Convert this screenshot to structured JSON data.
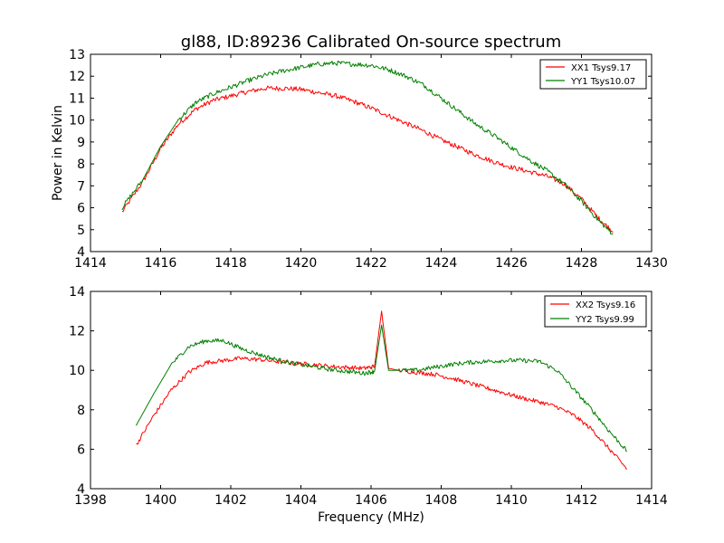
{
  "chart_data": [
    {
      "type": "line",
      "title": "gl88, ID:89236 Calibrated On-source spectrum",
      "xlabel": "",
      "ylabel": "Power in Kelvin",
      "xlim": [
        1414,
        1430
      ],
      "ylim": [
        4,
        13
      ],
      "xticks": [
        1414,
        1416,
        1418,
        1420,
        1422,
        1424,
        1426,
        1428,
        1430
      ],
      "yticks": [
        4,
        5,
        6,
        7,
        8,
        9,
        10,
        11,
        12,
        13
      ],
      "legend_position": "top-right",
      "series": [
        {
          "name": "XX1 Tsys9.17",
          "color": "#ff0000",
          "x": [
            1414.9,
            1415.5,
            1416.0,
            1416.5,
            1417.0,
            1417.5,
            1418.0,
            1418.5,
            1419.0,
            1419.5,
            1420.0,
            1420.5,
            1421.0,
            1421.5,
            1422.0,
            1422.5,
            1423.0,
            1423.5,
            1424.0,
            1424.5,
            1425.0,
            1425.5,
            1426.0,
            1426.5,
            1427.0,
            1427.5,
            1428.0,
            1428.5,
            1428.9
          ],
          "y": [
            5.8,
            7.2,
            8.7,
            9.8,
            10.5,
            10.9,
            11.1,
            11.3,
            11.45,
            11.45,
            11.4,
            11.25,
            11.1,
            10.85,
            10.55,
            10.2,
            9.85,
            9.5,
            9.1,
            8.75,
            8.4,
            8.1,
            7.85,
            7.65,
            7.45,
            7.1,
            6.4,
            5.5,
            4.9
          ]
        },
        {
          "name": "YY1 Tsys10.07",
          "color": "#008000",
          "x": [
            1414.9,
            1415.5,
            1416.0,
            1416.5,
            1417.0,
            1417.5,
            1418.0,
            1418.5,
            1419.0,
            1419.5,
            1420.0,
            1420.5,
            1421.0,
            1421.5,
            1422.0,
            1422.5,
            1423.0,
            1423.5,
            1424.0,
            1424.5,
            1425.0,
            1425.5,
            1426.0,
            1426.5,
            1427.0,
            1427.5,
            1428.0,
            1428.5,
            1428.9
          ],
          "y": [
            6.0,
            7.3,
            8.8,
            10.0,
            10.8,
            11.2,
            11.5,
            11.8,
            12.05,
            12.25,
            12.4,
            12.55,
            12.6,
            12.55,
            12.5,
            12.3,
            12.0,
            11.6,
            11.0,
            10.4,
            9.8,
            9.3,
            8.75,
            8.2,
            7.7,
            7.1,
            6.3,
            5.4,
            4.8
          ]
        }
      ]
    },
    {
      "type": "line",
      "title": "",
      "xlabel": "Frequency (MHz)",
      "ylabel": "",
      "xlim": [
        1398,
        1414
      ],
      "ylim": [
        4,
        14
      ],
      "xticks": [
        1398,
        1400,
        1402,
        1404,
        1406,
        1408,
        1410,
        1412,
        1414
      ],
      "yticks": [
        4,
        6,
        8,
        10,
        12,
        14
      ],
      "legend_position": "top-right",
      "series": [
        {
          "name": "XX2 Tsys9.16",
          "color": "#ff0000",
          "x": [
            1399.3,
            1399.8,
            1400.3,
            1400.8,
            1401.3,
            1401.8,
            1402.3,
            1402.8,
            1403.3,
            1403.8,
            1404.3,
            1404.8,
            1405.3,
            1405.8,
            1406.1,
            1406.3,
            1406.5,
            1406.8,
            1407.3,
            1407.8,
            1408.3,
            1408.8,
            1409.3,
            1409.8,
            1410.3,
            1410.8,
            1411.3,
            1411.8,
            1412.3,
            1412.8,
            1413.3
          ],
          "y": [
            6.2,
            7.7,
            9.0,
            9.9,
            10.4,
            10.5,
            10.6,
            10.55,
            10.45,
            10.35,
            10.3,
            10.2,
            10.15,
            10.1,
            10.2,
            13.0,
            10.1,
            10.0,
            9.9,
            9.8,
            9.6,
            9.35,
            9.1,
            8.85,
            8.6,
            8.4,
            8.15,
            7.7,
            7.0,
            6.0,
            5.0
          ]
        },
        {
          "name": "YY2 Tsys9.99",
          "color": "#008000",
          "x": [
            1399.3,
            1399.8,
            1400.3,
            1400.8,
            1401.3,
            1401.8,
            1402.3,
            1402.8,
            1403.3,
            1403.8,
            1404.3,
            1404.8,
            1405.3,
            1405.8,
            1406.1,
            1406.3,
            1406.5,
            1406.8,
            1407.3,
            1407.8,
            1408.3,
            1408.8,
            1409.3,
            1409.8,
            1410.3,
            1410.8,
            1411.3,
            1411.8,
            1412.3,
            1412.8,
            1413.3
          ],
          "y": [
            7.2,
            8.8,
            10.3,
            11.2,
            11.5,
            11.5,
            11.1,
            10.8,
            10.55,
            10.35,
            10.2,
            10.05,
            9.95,
            9.85,
            9.95,
            12.3,
            10.0,
            10.0,
            10.0,
            10.15,
            10.3,
            10.4,
            10.45,
            10.5,
            10.5,
            10.45,
            10.0,
            9.0,
            8.0,
            6.9,
            5.9
          ]
        }
      ]
    }
  ]
}
